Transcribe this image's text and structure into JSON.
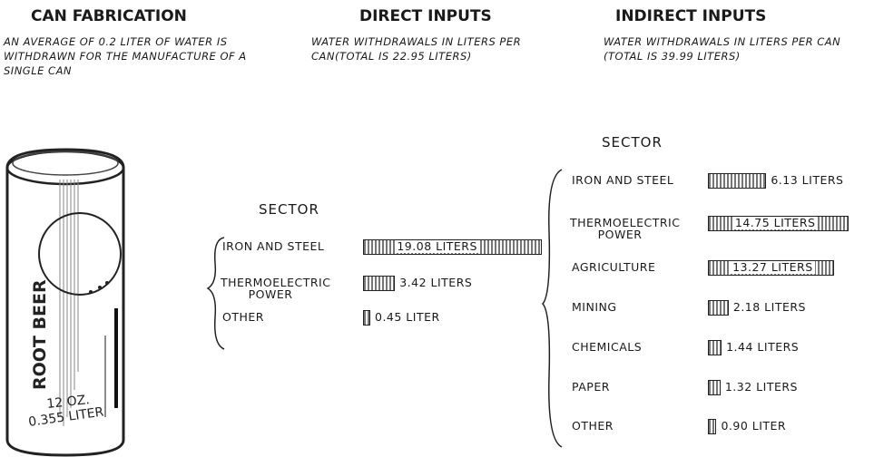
{
  "can_fabrication": {
    "title": "CAN FABRICATION",
    "text": "AN AVERAGE OF 0.2 LITER OF WATER IS WITHDRAWN FOR THE MANUFACTURE OF A SINGLE CAN"
  },
  "can": {
    "brand": "ROOT BEER",
    "size_oz": "12 OZ.",
    "size_liter": "0.355 LITER"
  },
  "chart_data": [
    {
      "type": "bar",
      "title": "DIRECT INPUTS",
      "subtitle": "WATER WITHDRAWALS IN LITERS PER CAN(TOTAL IS 22.95 LITERS)",
      "axis_label": "SECTOR",
      "categories": [
        "IRON AND STEEL",
        "THERMOELECTRIC POWER",
        "OTHER"
      ],
      "values": [
        19.08,
        3.42,
        0.45
      ],
      "value_labels": [
        "19.08 LITERS",
        "3.42 LITERS",
        "0.45 LITER"
      ],
      "color": "#777777"
    },
    {
      "type": "bar",
      "title": "INDIRECT INPUTS",
      "subtitle": "WATER WITHDRAWALS IN LITERS PER CAN (TOTAL IS 39.99 LITERS)",
      "axis_label": "SECTOR",
      "categories": [
        "IRON AND STEEL",
        "THERMOELECTRIC POWER",
        "AGRICULTURE",
        "MINING",
        "CHEMICALS",
        "PAPER",
        "OTHER"
      ],
      "values": [
        6.13,
        14.75,
        13.27,
        2.18,
        1.44,
        1.32,
        0.9
      ],
      "value_labels": [
        "6.13 LITERS",
        "14.75 LITERS",
        "13.27 LITERS",
        "2.18 LITERS",
        "1.44 LITERS",
        "1.32 LITERS",
        "0.90 LITER"
      ],
      "color": "#777777"
    }
  ]
}
